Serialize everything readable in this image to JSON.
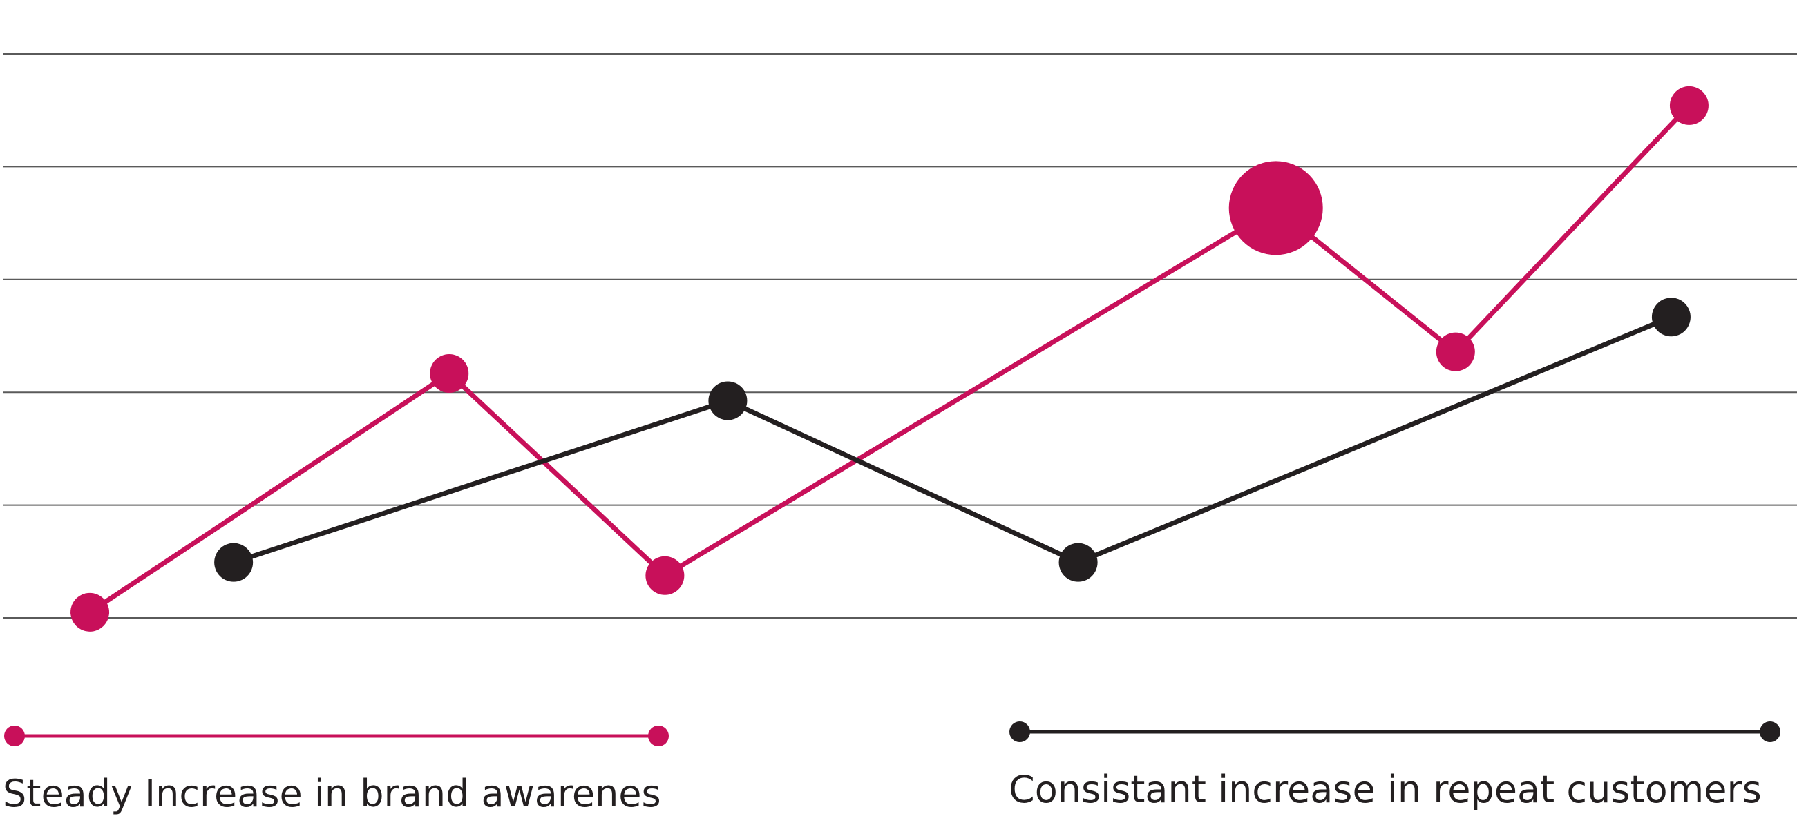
{
  "chart_data": {
    "type": "line",
    "title": "",
    "xlabel": "",
    "ylabel": "",
    "grid": true,
    "gridlines": 6,
    "ylim": [
      0,
      6
    ],
    "legend_placement": "bottom",
    "series": [
      {
        "name": "Steady Increase in brand awarenes",
        "color": "#c8105a",
        "points": [
          {
            "x": 0.5,
            "y": 0.06
          },
          {
            "x": 2.5,
            "y": 2.6
          },
          {
            "x": 3.7,
            "y": 0.45
          },
          {
            "x": 7.1,
            "y": 4.36,
            "emphasis": true
          },
          {
            "x": 8.1,
            "y": 2.83
          },
          {
            "x": 9.4,
            "y": 5.45
          }
        ]
      },
      {
        "name": "Consistant increase in repeat customers",
        "color": "#231f20",
        "points": [
          {
            "x": 1.3,
            "y": 0.59
          },
          {
            "x": 4.05,
            "y": 2.31
          },
          {
            "x": 6.0,
            "y": 0.59
          },
          {
            "x": 9.3,
            "y": 3.2
          }
        ]
      }
    ],
    "xlim": [
      0,
      10
    ]
  }
}
